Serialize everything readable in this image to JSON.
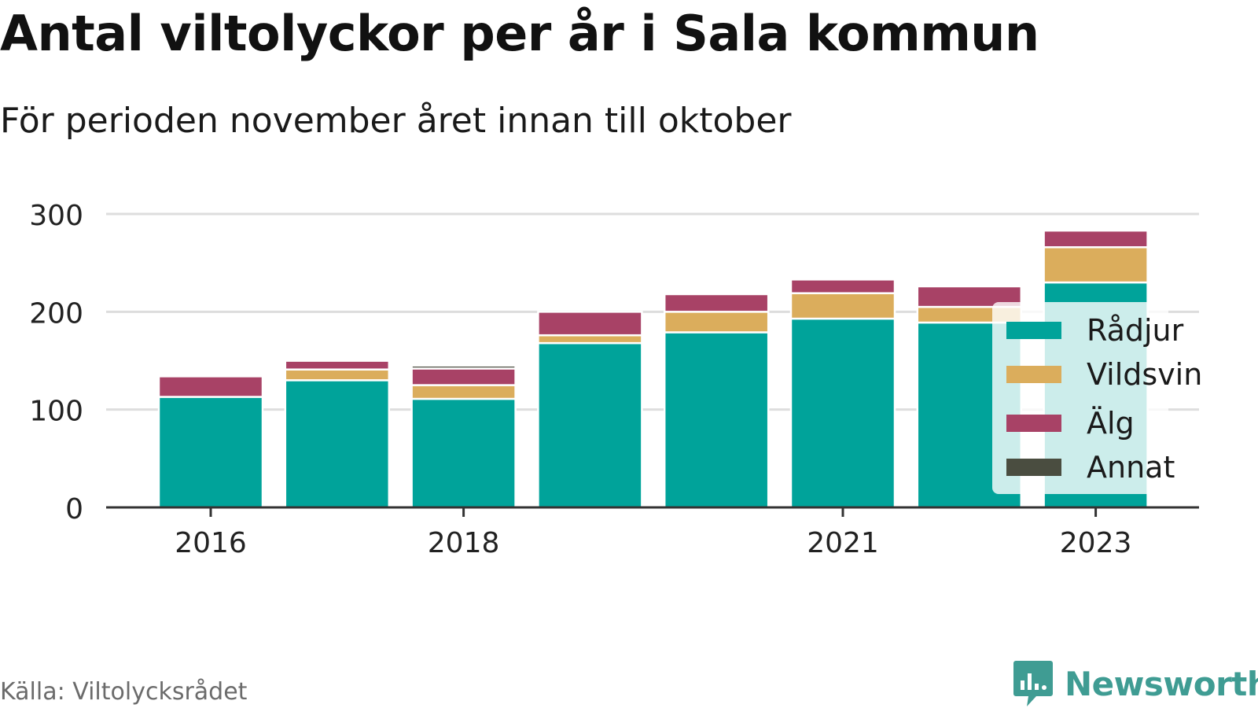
{
  "header": {
    "title": "Antal viltolyckor per år i Sala kommun",
    "subtitle": "För perioden november året innan till oktober"
  },
  "footer": {
    "source": "Källa: Viltolycksrådet",
    "brand": "Newsworthy",
    "brand_icon": "newsworthy-logo-icon"
  },
  "colors": {
    "Rådjur": "#00a39a",
    "Vildsvin": "#dbad5c",
    "Älg": "#a84266",
    "Annat": "#4a4d40",
    "grid": "#dddddd",
    "axis": "#333333",
    "brand": "#3f9c93"
  },
  "chart_data": {
    "type": "bar",
    "stacked": true,
    "title": "Antal viltolyckor per år i Sala kommun",
    "subtitle": "För perioden november året innan till oktober",
    "xlabel": "",
    "ylabel": "",
    "ylim": [
      0,
      300
    ],
    "yticks": [
      0,
      100,
      200,
      300
    ],
    "grid": true,
    "legend_position": "right",
    "categories": [
      2016,
      2017,
      2018,
      2019,
      2020,
      2021,
      2022,
      2023
    ],
    "x_tick_labels": [
      "2016",
      "2018",
      "2021",
      "2023"
    ],
    "series": [
      {
        "name": "Rådjur",
        "values": [
          113,
          130,
          111,
          168,
          179,
          193,
          189,
          230
        ]
      },
      {
        "name": "Vildsvin",
        "values": [
          0,
          11,
          14,
          8,
          21,
          26,
          16,
          36
        ]
      },
      {
        "name": "Älg",
        "values": [
          21,
          9,
          17,
          24,
          18,
          14,
          21,
          17
        ]
      },
      {
        "name": "Annat",
        "values": [
          0,
          2,
          3,
          0,
          0,
          0,
          0,
          0
        ]
      }
    ]
  }
}
